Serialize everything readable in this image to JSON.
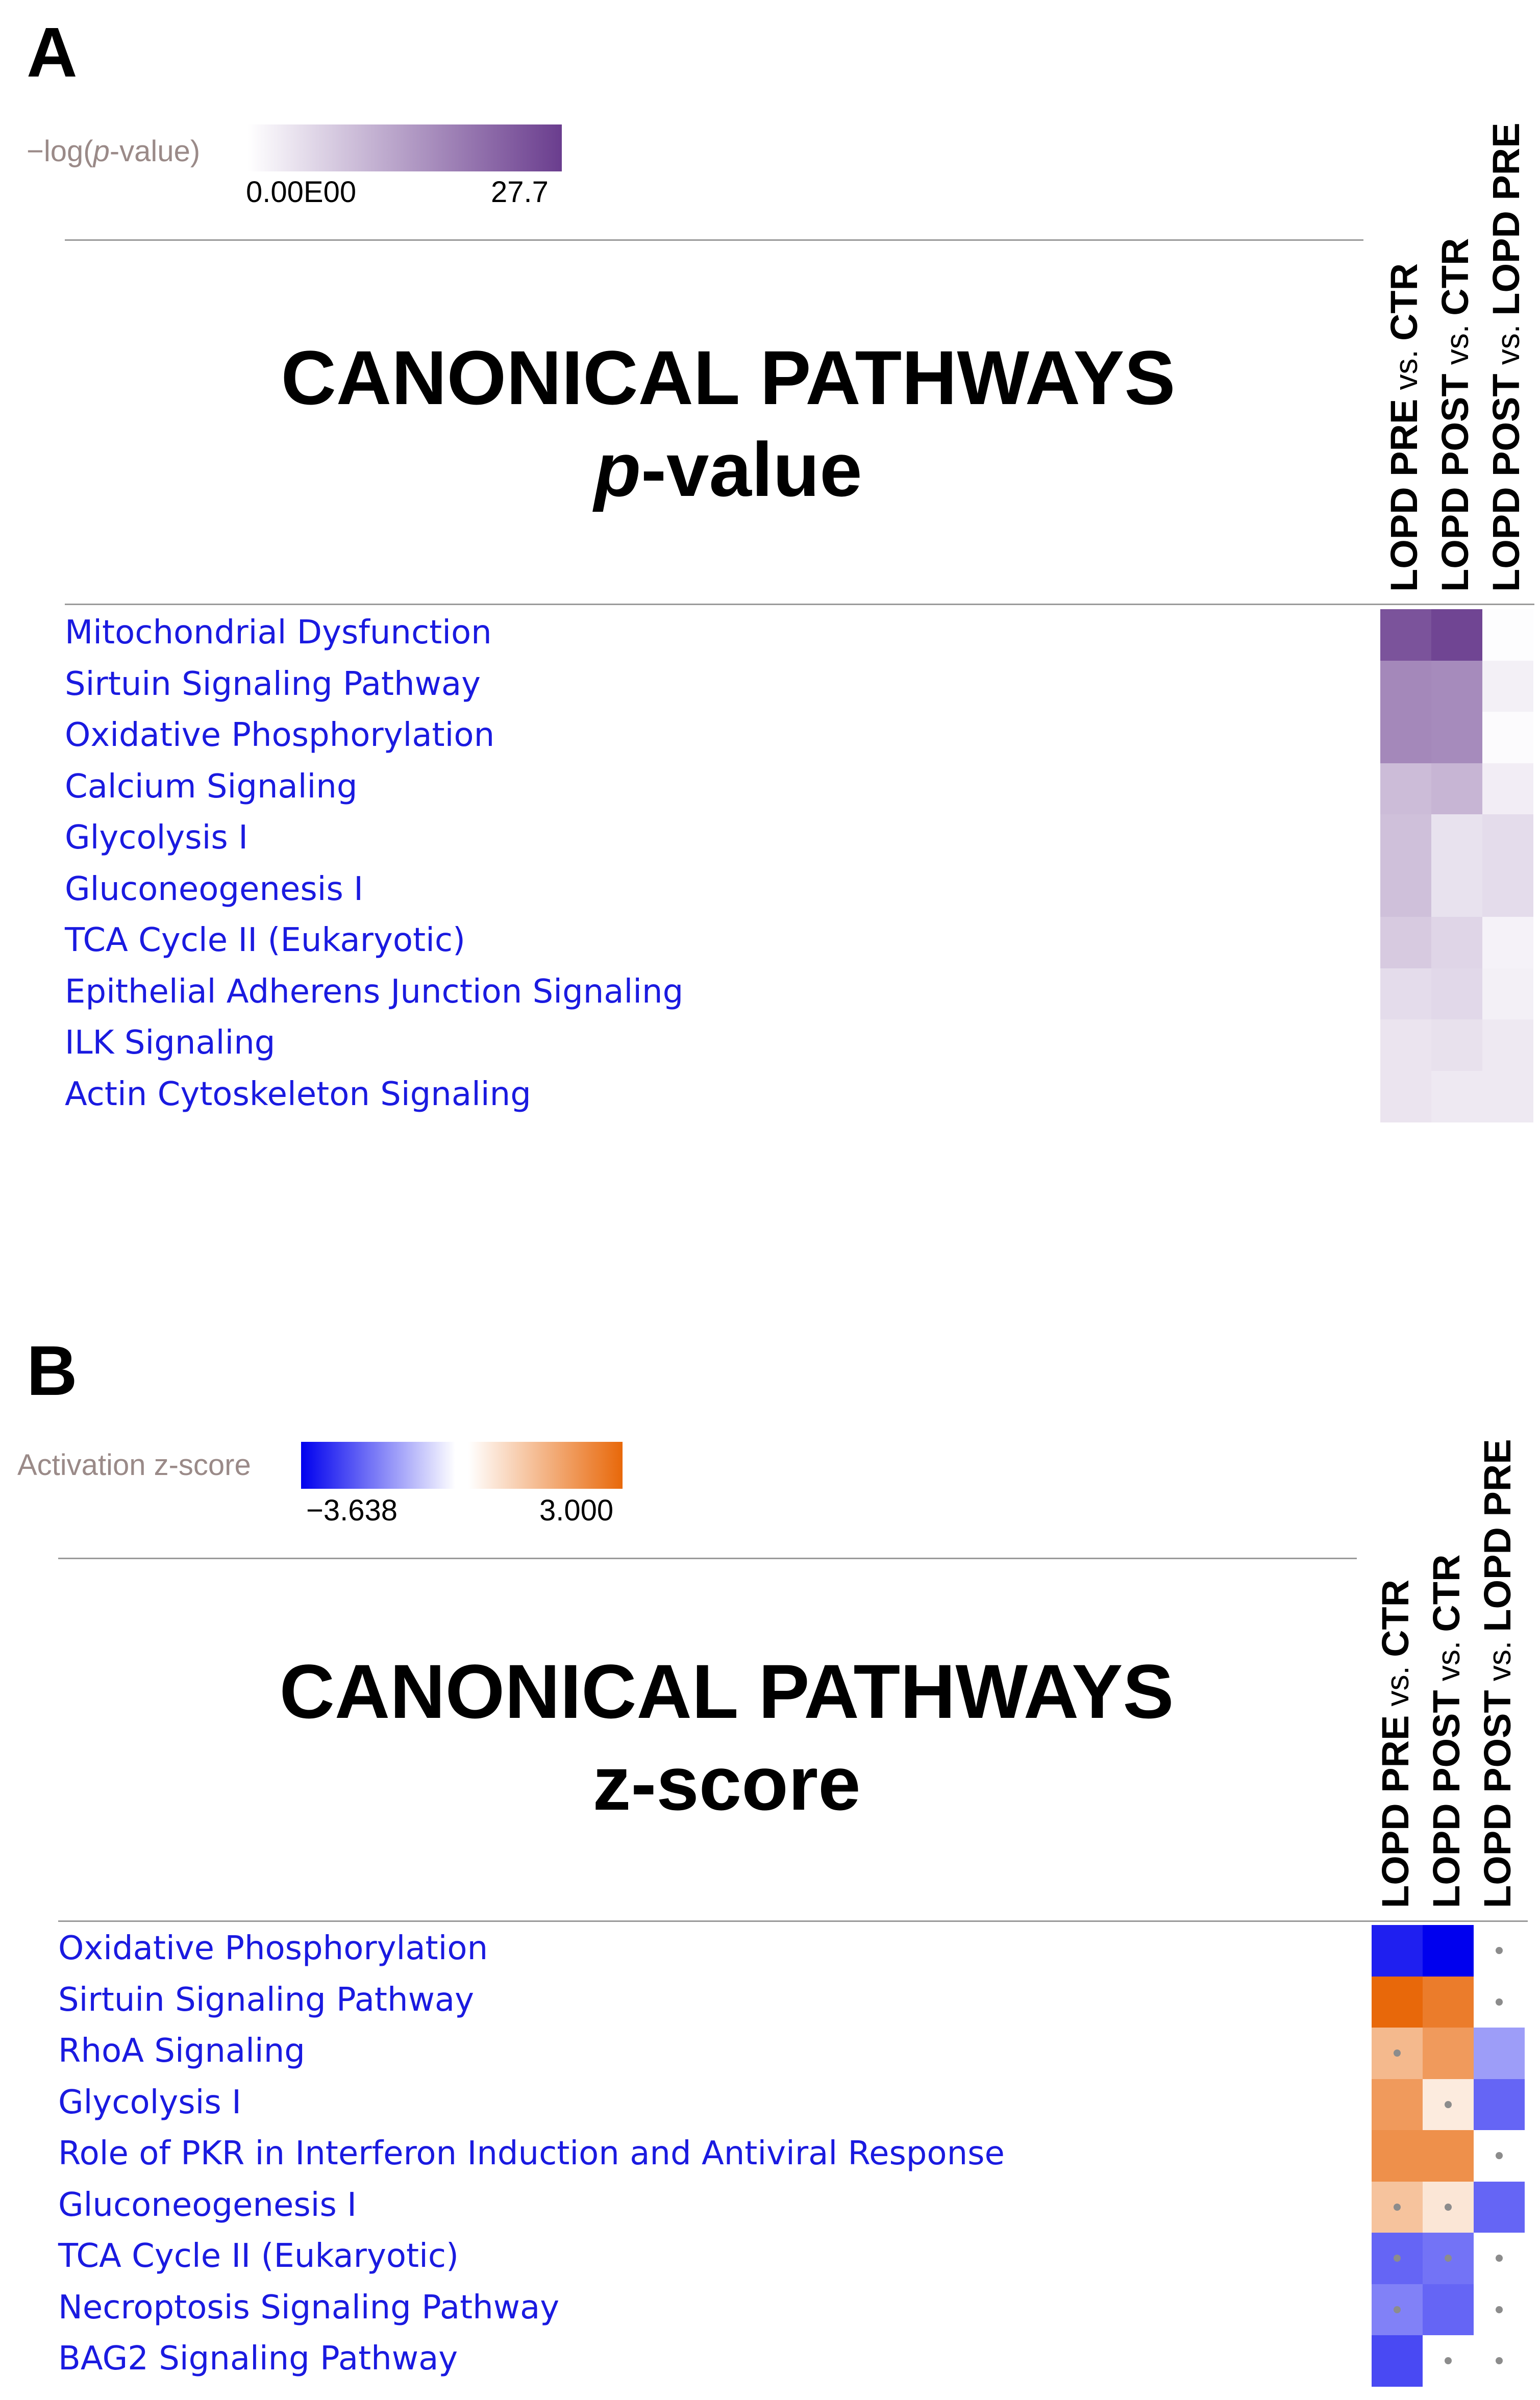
{
  "chart_data": [
    {
      "type": "heatmap",
      "panel": "A",
      "title": "CANONICAL PATHWAYS",
      "subtitle_italic": "p",
      "subtitle_rest": "-value",
      "legend": {
        "label_pre": "−log(",
        "label_italic": "p",
        "label_post": "-value)",
        "min_label": "0.00E00",
        "max_label": "27.7",
        "colors": [
          "#ffffff",
          "#6a3d8e"
        ]
      },
      "columns": [
        {
          "bold1": "LOPD PRE",
          "vs": " vs. ",
          "bold2": "CTR"
        },
        {
          "bold1": "LOPD POST",
          "vs": " vs. ",
          "bold2": "CTR"
        },
        {
          "bold1": "LOPD POST",
          "vs": " vs. ",
          "bold2": "LOPD PRE"
        }
      ],
      "rows": [
        "Mitochondrial Dysfunction",
        "Sirtuin Signaling Pathway",
        "Oxidative Phosphorylation",
        "Calcium Signaling",
        "Glycolysis I",
        "Gluconeogenesis I",
        "TCA Cycle II (Eukaryotic)",
        "Epithelial Adherens Junction Signaling",
        "ILK Signaling",
        "Actin Cytoskeleton Signaling"
      ],
      "max": 27.7,
      "values": [
        [
          24.5,
          26.5,
          0.3
        ],
        [
          17.0,
          16.5,
          2.2
        ],
        [
          17.0,
          16.5,
          0.5
        ],
        [
          9.5,
          10.5,
          2.5
        ],
        [
          9.0,
          4.2,
          5.0
        ],
        [
          9.0,
          4.2,
          5.0
        ],
        [
          7.5,
          6.0,
          1.8
        ],
        [
          5.0,
          5.5,
          2.2
        ],
        [
          3.8,
          4.3,
          3.2
        ],
        [
          3.8,
          3.2,
          3.2
        ]
      ]
    },
    {
      "type": "heatmap",
      "panel": "B",
      "title": "CANONICAL PATHWAYS",
      "subtitle": "z-score",
      "legend": {
        "label": "Activation z-score",
        "min_label": "−3.638",
        "max_label": "3.000",
        "min": -3.638,
        "max": 3.0,
        "colors": [
          "#0000ee",
          "#ffffff",
          "#e8680a"
        ]
      },
      "columns": [
        {
          "bold1": "LOPD PRE",
          "vs": " vs. ",
          "bold2": "CTR"
        },
        {
          "bold1": "LOPD POST",
          "vs": " vs. ",
          "bold2": "CTR"
        },
        {
          "bold1": "LOPD POST",
          "vs": " vs. ",
          "bold2": "LOPD PRE"
        }
      ],
      "rows": [
        "Oxidative Phosphorylation",
        "Sirtuin Signaling Pathway",
        "RhoA Signaling",
        "Glycolysis I",
        "Role of PKR in Interferon Induction and Antiviral Response",
        "Gluconeogenesis I",
        "TCA Cycle II (Eukaryotic)",
        "Necroptosis Signaling Pathway",
        "BAG2 Signaling Pathway"
      ],
      "values": [
        [
          -3.2,
          -3.638,
          null
        ],
        [
          3.0,
          2.6,
          null
        ],
        [
          1.4,
          2.0,
          -1.4
        ],
        [
          2.0,
          0.4,
          -2.2
        ],
        [
          2.2,
          2.2,
          null
        ],
        [
          1.2,
          0.5,
          -2.2
        ],
        [
          -2.2,
          -2.0,
          null
        ],
        [
          -1.8,
          -2.2,
          null
        ],
        [
          -2.6,
          null,
          null
        ]
      ],
      "dots": [
        [
          false,
          false,
          true
        ],
        [
          false,
          false,
          true
        ],
        [
          true,
          false,
          false
        ],
        [
          false,
          true,
          false
        ],
        [
          false,
          false,
          true
        ],
        [
          true,
          true,
          false
        ],
        [
          true,
          true,
          true
        ],
        [
          true,
          false,
          true
        ],
        [
          false,
          true,
          true
        ]
      ]
    }
  ]
}
